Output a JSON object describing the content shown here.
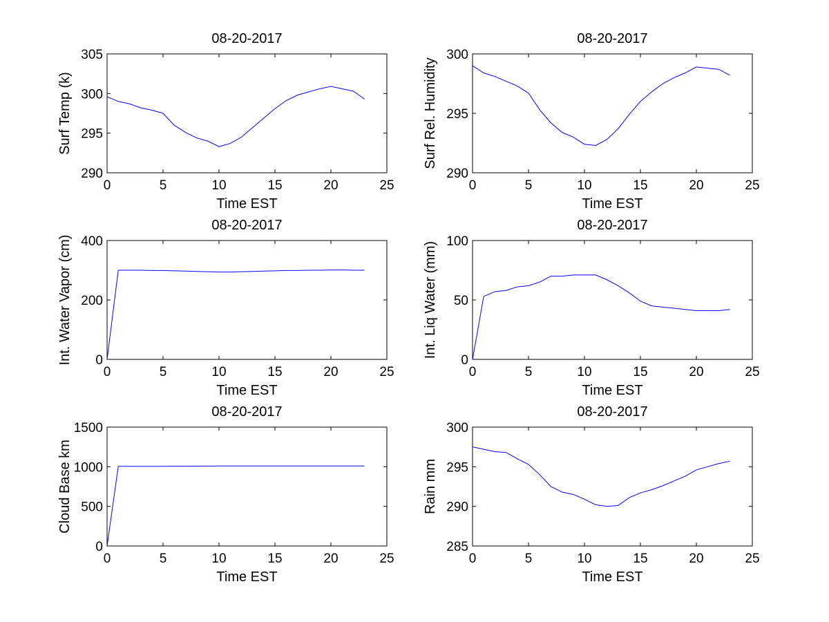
{
  "figure_title": "08-20-2017",
  "chart_data": [
    {
      "type": "line",
      "title": "08-20-2017",
      "xlabel": "Time EST",
      "ylabel": "Surf Temp (k)",
      "xlim": [
        0,
        25
      ],
      "ylim": [
        290,
        305
      ],
      "xticks": [
        0,
        5,
        10,
        15,
        20,
        25
      ],
      "yticks": [
        290,
        295,
        300,
        305
      ],
      "grid": false,
      "line_color": "#0000ff",
      "x": [
        0,
        1,
        2,
        3,
        4,
        5,
        6,
        7,
        8,
        9,
        10,
        11,
        12,
        13,
        14,
        15,
        16,
        17,
        18,
        19,
        20,
        21,
        22,
        23
      ],
      "y": [
        299.6,
        299.0,
        298.7,
        298.2,
        297.9,
        297.5,
        296.0,
        295.1,
        294.4,
        294.0,
        293.3,
        293.7,
        294.5,
        295.7,
        296.9,
        298.1,
        299.1,
        299.8,
        300.2,
        300.6,
        300.9,
        300.6,
        300.3,
        299.3
      ]
    },
    {
      "type": "line",
      "title": "08-20-2017",
      "xlabel": "Time EST",
      "ylabel": "Surf Rel. Humidity",
      "xlim": [
        0,
        25
      ],
      "ylim": [
        290,
        300
      ],
      "xticks": [
        0,
        5,
        10,
        15,
        20,
        25
      ],
      "yticks": [
        290,
        295,
        300
      ],
      "grid": false,
      "line_color": "#0000ff",
      "x": [
        0,
        1,
        2,
        3,
        4,
        5,
        6,
        7,
        8,
        9,
        10,
        11,
        12,
        13,
        14,
        15,
        16,
        17,
        18,
        19,
        20,
        21,
        22,
        23
      ],
      "y": [
        299.0,
        298.4,
        298.1,
        297.7,
        297.3,
        296.7,
        295.3,
        294.2,
        293.4,
        293.0,
        292.4,
        292.3,
        292.8,
        293.7,
        294.9,
        296.0,
        296.8,
        297.5,
        298.0,
        298.4,
        298.9,
        298.8,
        298.7,
        298.2
      ]
    },
    {
      "type": "line",
      "title": "08-20-2017",
      "xlabel": "Time EST",
      "ylabel": "Int. Water Vapor (cm)",
      "xlim": [
        0,
        25
      ],
      "ylim": [
        0,
        400
      ],
      "xticks": [
        0,
        5,
        10,
        15,
        20,
        25
      ],
      "yticks": [
        0,
        200,
        400
      ],
      "grid": false,
      "line_color": "#0000ff",
      "x": [
        0,
        1,
        2,
        3,
        4,
        5,
        6,
        7,
        8,
        9,
        10,
        11,
        12,
        13,
        14,
        15,
        16,
        17,
        18,
        19,
        20,
        21,
        22,
        23
      ],
      "y": [
        0,
        300,
        300,
        300,
        299,
        299,
        298,
        297,
        296,
        295,
        294,
        294,
        295,
        296,
        297,
        298,
        299,
        299,
        300,
        300,
        301,
        301,
        300,
        300
      ]
    },
    {
      "type": "line",
      "title": "08-20-2017",
      "xlabel": "Time EST",
      "ylabel": "Int. Liq Water (mm)",
      "xlim": [
        0,
        25
      ],
      "ylim": [
        0,
        100
      ],
      "xticks": [
        0,
        5,
        10,
        15,
        20,
        25
      ],
      "yticks": [
        0,
        50,
        100
      ],
      "grid": false,
      "line_color": "#0000ff",
      "x": [
        0,
        1,
        2,
        3,
        4,
        5,
        6,
        7,
        8,
        9,
        10,
        11,
        12,
        13,
        14,
        15,
        16,
        17,
        18,
        19,
        20,
        21,
        22,
        23
      ],
      "y": [
        0,
        53,
        57,
        58,
        61,
        62,
        65,
        70,
        70,
        71,
        71,
        71,
        67,
        62,
        56,
        49,
        45,
        44,
        43,
        42,
        41,
        41,
        41,
        42
      ]
    },
    {
      "type": "line",
      "title": "08-20-2017",
      "xlabel": "Time EST",
      "ylabel": "Cloud Base km",
      "xlim": [
        0,
        25
      ],
      "ylim": [
        0,
        1500
      ],
      "xticks": [
        0,
        5,
        10,
        15,
        20,
        25
      ],
      "yticks": [
        0,
        500,
        1000,
        1500
      ],
      "grid": false,
      "line_color": "#0000ff",
      "x": [
        0,
        1,
        2,
        3,
        4,
        5,
        6,
        7,
        8,
        9,
        10,
        11,
        12,
        13,
        14,
        15,
        16,
        17,
        18,
        19,
        20,
        21,
        22,
        23
      ],
      "y": [
        0,
        1005,
        1005,
        1005,
        1005,
        1005,
        1006,
        1006,
        1007,
        1008,
        1010,
        1010,
        1010,
        1010,
        1010,
        1010,
        1010,
        1010,
        1010,
        1010,
        1010,
        1010,
        1010,
        1010
      ]
    },
    {
      "type": "line",
      "title": "08-20-2017",
      "xlabel": "Time EST",
      "ylabel": "Rain mm",
      "xlim": [
        0,
        25
      ],
      "ylim": [
        285,
        300
      ],
      "xticks": [
        0,
        5,
        10,
        15,
        20,
        25
      ],
      "yticks": [
        285,
        290,
        295,
        300
      ],
      "grid": false,
      "line_color": "#0000ff",
      "x": [
        0,
        1,
        2,
        3,
        4,
        5,
        6,
        7,
        8,
        9,
        10,
        11,
        12,
        13,
        14,
        15,
        16,
        17,
        18,
        19,
        20,
        21,
        22,
        23
      ],
      "y": [
        297.5,
        297.2,
        296.9,
        296.8,
        296.0,
        295.3,
        294.0,
        292.5,
        291.8,
        291.5,
        290.9,
        290.2,
        290.0,
        290.1,
        291.1,
        291.7,
        292.1,
        292.6,
        293.2,
        293.8,
        294.6,
        295.0,
        295.4,
        295.7
      ]
    }
  ]
}
